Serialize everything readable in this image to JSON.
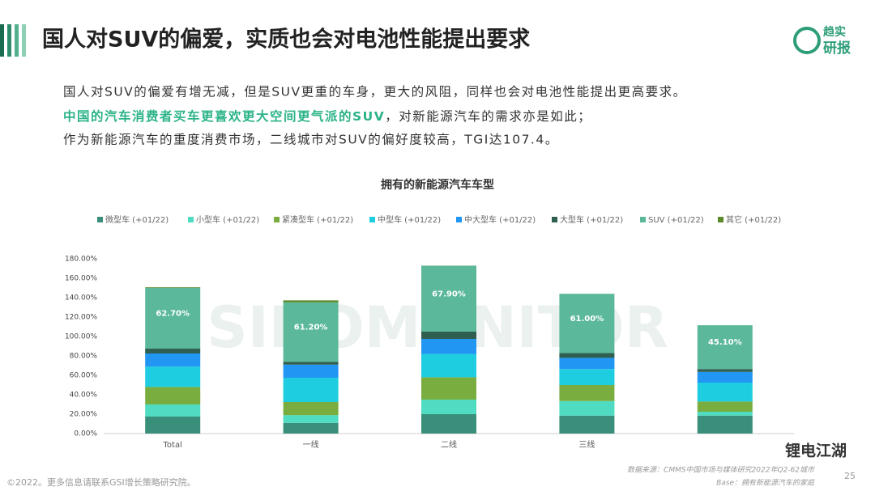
{
  "slide": {
    "title": "国人对SUV的偏爱，实质也会对电池性能提出要求",
    "logo": [
      "趋实",
      "研报"
    ],
    "paragraphs": [
      "国人对SUV的偏爱有增无减，但是SUV更重的车身，更大的风阻，同样也会对电池性能提出更高要求。",
      "中国的汽车消费者买车更喜欢更大空间更气派的SUV",
      "，对新能源汽车的需求亦是如此；",
      "作为新能源汽车的重度消费市场，二线城市对SUV的偏好度较高，TGI达107.4。"
    ],
    "watermark": "SINOMONITOR",
    "wechat": "锂电江湖",
    "copyright": "©2022。更多信息请联系GSI增长策略研究院。",
    "source": "数据来源：CMMS中国市场与媒体研究2022年Q2-62城市",
    "base": "Base：拥有新能源汽车的家庭",
    "page": "25"
  },
  "chart_data": {
    "type": "stacked_bar",
    "title": "拥有的新能源汽车车型",
    "categories": [
      "Total",
      "一线",
      "二线",
      "三线",
      null
    ],
    "series": [
      {
        "name": "微型车 (+01/22)",
        "color": "#3a8f7a",
        "values": [
          17.5,
          11,
          20,
          18.5,
          18.5
        ]
      },
      {
        "name": "小型车 (+01/22)",
        "color": "#4fdcc2",
        "values": [
          12.5,
          8,
          15,
          15,
          4
        ]
      },
      {
        "name": "紧凑型车 (+01/22)",
        "color": "#7aad3f",
        "values": [
          18,
          13.5,
          23,
          16.5,
          10.5
        ]
      },
      {
        "name": "中型车 (+01/22)",
        "color": "#1fcde0",
        "values": [
          21,
          25,
          24,
          16.5,
          19.5
        ]
      },
      {
        "name": "中大型车 (+01/22)",
        "color": "#2196f3",
        "values": [
          13.5,
          13.5,
          15.5,
          11.5,
          11
        ]
      },
      {
        "name": "大型车 (+01/22)",
        "color": "#2f5f50",
        "values": [
          5,
          3,
          7.5,
          5,
          3
        ]
      },
      {
        "name": "SUV (+01/22)",
        "color": "#5bb89a",
        "values": [
          62.7,
          61.2,
          67.9,
          61,
          45.1
        ],
        "value_labels": [
          "62.70%",
          "61.20%",
          "67.90%",
          "61.00%",
          "45.10%"
        ]
      },
      {
        "name": "其它 (+01/22)",
        "color": "#5a8a2a",
        "values": [
          0.6,
          2,
          0.1,
          0,
          0
        ]
      }
    ],
    "ylim": [
      0,
      180
    ],
    "yticks": [
      {
        "value": 0,
        "label": "0.00%"
      },
      {
        "value": 20,
        "label": "20.00%"
      },
      {
        "value": 40,
        "label": "40.00%"
      },
      {
        "value": 60,
        "label": "60.00%"
      },
      {
        "value": 80,
        "label": "80.00%"
      },
      {
        "value": 100,
        "label": "100.00%"
      },
      {
        "value": 120,
        "label": "120.00%"
      },
      {
        "value": 140,
        "label": "140.00%"
      },
      {
        "value": 160,
        "label": "160.00%"
      },
      {
        "value": 180,
        "label": "180.00%"
      }
    ],
    "grid": false
  }
}
